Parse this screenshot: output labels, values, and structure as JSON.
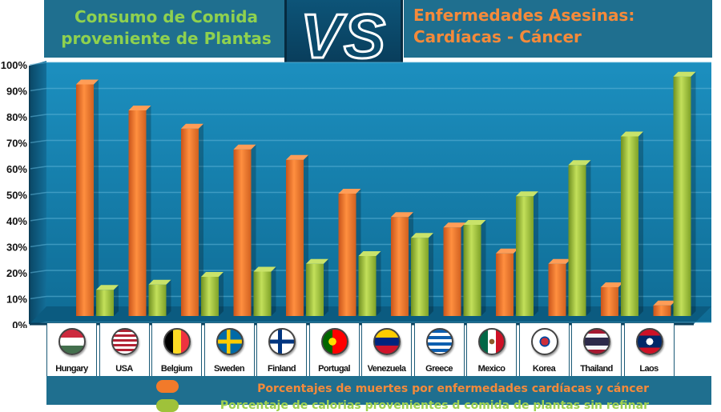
{
  "header": {
    "left_title_line1": "Consumo de Comida",
    "left_title_line2": "proveniente de Plantas",
    "right_title_line1": "Enfermedades Asesinas:",
    "right_title_line2": "Cardíacas - Cáncer",
    "vs_label": "VS"
  },
  "colors": {
    "orange": "#f27a2a",
    "green": "#9fc23a",
    "band": "#1f6f8f",
    "left_title": "#8fd14f",
    "right_title": "#f58a3a"
  },
  "chart_data": {
    "type": "bar",
    "title": "",
    "xlabel": "",
    "ylabel": "",
    "ylim": [
      0,
      100
    ],
    "y_ticks": [
      "0%",
      "10%",
      "20%",
      "30%",
      "40%",
      "50%",
      "60%",
      "70%",
      "80%",
      "90%",
      "100%"
    ],
    "grid": true,
    "categories": [
      "Hungary",
      "USA",
      "Belgium",
      "Sweden",
      "Finland",
      "Portugal",
      "Venezuela",
      "Greece",
      "Mexico",
      "Korea",
      "Thailand",
      "Laos"
    ],
    "series": [
      {
        "name": "Porcentajes de muertes por enfermedades cardíacas y cáncer",
        "color": "#f27a2a",
        "values": [
          94,
          84,
          77,
          69,
          65,
          52,
          43,
          39,
          29,
          25,
          16,
          9
        ]
      },
      {
        "name": "Porcentaje de calorias provenientes d comida de plantas sin refinar",
        "color": "#9fc23a",
        "values": [
          15,
          17,
          20,
          22,
          25,
          28,
          35,
          40,
          51,
          63,
          74,
          97
        ]
      }
    ]
  },
  "legend": {
    "orange_label": "Porcentajes de muertes por enfermedades cardíacas y cáncer",
    "green_label": "Porcentaje de calorias provenientes d comida de plantas sin refinar"
  }
}
